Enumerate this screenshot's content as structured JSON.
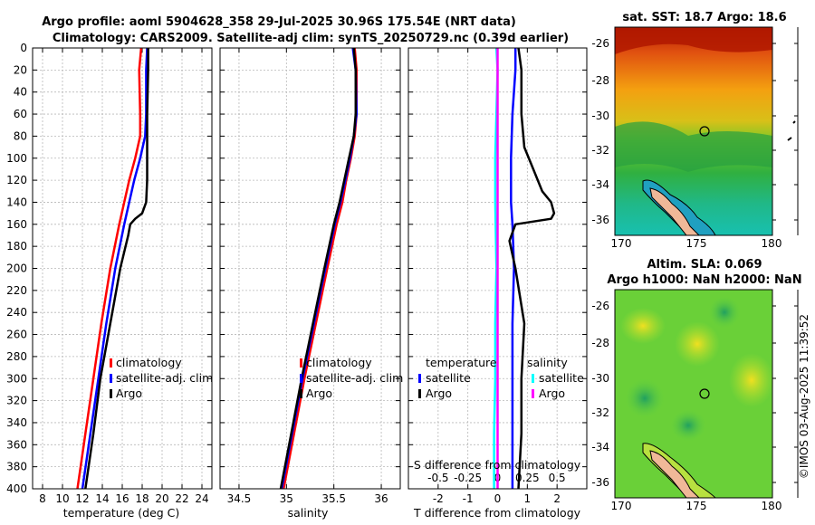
{
  "titles": {
    "line1": "Argo profile: aoml 5904628_358 29-Jul-2025 30.96S 175.54E (NRT data)",
    "line2": "Climatology: CARS2009. Satellite-adj clim: synTS_20250729.nc (0.39d earlier)"
  },
  "depth_ticks": [
    "0",
    "20",
    "40",
    "60",
    "80",
    "100",
    "120",
    "140",
    "160",
    "180",
    "200",
    "220",
    "240",
    "260",
    "280",
    "300",
    "320",
    "340",
    "360",
    "380",
    "400"
  ],
  "colors": {
    "climatology": "#ff0000",
    "satellite": "#0000ff",
    "argo": "#000000",
    "sal_satellite": "#00ffff",
    "sal_argo": "#ff00ff"
  },
  "chart_data": [
    {
      "type": "line",
      "panel": "temperature",
      "xlabel": "temperature (deg C)",
      "xlim": [
        7,
        25
      ],
      "ylim": [
        0,
        400
      ],
      "yreversed": true,
      "xticks": [
        "8",
        "10",
        "12",
        "14",
        "16",
        "18",
        "20",
        "22",
        "24"
      ],
      "legend": [
        "climatology",
        "satellite-adj. clim",
        "Argo"
      ],
      "series": [
        {
          "name": "climatology",
          "color": "#ff0000",
          "depth": [
            0,
            20,
            60,
            80,
            100,
            120,
            140,
            160,
            200,
            250,
            300,
            350,
            400
          ],
          "values": [
            17.9,
            17.7,
            17.8,
            17.8,
            17.3,
            16.7,
            16.2,
            15.7,
            14.8,
            13.9,
            13.1,
            12.3,
            11.5
          ]
        },
        {
          "name": "satellite-adj. clim",
          "color": "#0000ff",
          "depth": [
            0,
            20,
            60,
            80,
            100,
            120,
            140,
            160,
            200,
            250,
            300,
            350,
            400
          ],
          "values": [
            18.5,
            18.4,
            18.4,
            18.3,
            17.8,
            17.2,
            16.7,
            16.2,
            15.3,
            14.4,
            13.6,
            12.8,
            12.0
          ]
        },
        {
          "name": "Argo",
          "color": "#000000",
          "depth": [
            0,
            20,
            60,
            100,
            120,
            140,
            150,
            155,
            160,
            170,
            200,
            250,
            300,
            350,
            400
          ],
          "values": [
            18.6,
            18.6,
            18.5,
            18.5,
            18.5,
            18.4,
            18.0,
            17.3,
            16.8,
            16.6,
            15.8,
            14.8,
            13.8,
            13.1,
            12.3
          ]
        }
      ]
    },
    {
      "type": "line",
      "panel": "salinity",
      "xlabel": "salinity",
      "xlim": [
        34.3,
        36.2
      ],
      "ylim": [
        0,
        400
      ],
      "yreversed": true,
      "xticks": [
        "34.5",
        "35",
        "35.5",
        "36"
      ],
      "legend": [
        "climatology",
        "satellite-adj. clim",
        "Argo"
      ],
      "series": [
        {
          "name": "climatology",
          "color": "#ff0000",
          "depth": [
            0,
            20,
            60,
            80,
            100,
            120,
            140,
            160,
            200,
            250,
            300,
            350,
            400
          ],
          "values": [
            35.72,
            35.74,
            35.74,
            35.72,
            35.68,
            35.63,
            35.59,
            35.53,
            35.43,
            35.31,
            35.19,
            35.08,
            34.97
          ]
        },
        {
          "name": "satellite-adj. clim",
          "color": "#0000ff",
          "depth": [
            0,
            20,
            60,
            80,
            100,
            120,
            140,
            160,
            200,
            250,
            300,
            350,
            400
          ],
          "values": [
            35.7,
            35.73,
            35.74,
            35.71,
            35.67,
            35.62,
            35.57,
            35.51,
            35.41,
            35.29,
            35.17,
            35.06,
            34.95
          ]
        },
        {
          "name": "Argo",
          "color": "#000000",
          "depth": [
            0,
            20,
            60,
            80,
            100,
            120,
            140,
            160,
            200,
            250,
            300,
            350,
            400
          ],
          "values": [
            35.71,
            35.73,
            35.73,
            35.71,
            35.66,
            35.61,
            35.56,
            35.5,
            35.4,
            35.28,
            35.16,
            35.05,
            34.94
          ]
        }
      ]
    },
    {
      "type": "line",
      "panel": "difference",
      "xlabel": "T difference from climatology",
      "xlabel_top": "S difference from climatology",
      "xlim": [
        -3,
        3
      ],
      "ylim": [
        0,
        400
      ],
      "yreversed": true,
      "xticks": [
        "-2",
        "-1",
        "0",
        "1",
        "2"
      ],
      "xticks_salinity": [
        "-0.5",
        "-0.25",
        "0",
        "0.25",
        "0.5"
      ],
      "legend_temperature_title": "temperature",
      "legend_salinity_title": "salinity",
      "legend_temperature": [
        "satellite",
        "Argo"
      ],
      "legend_salinity": [
        "satellite",
        "Argo"
      ],
      "series": [
        {
          "name": "T satellite",
          "color": "#0000ff",
          "depth": [
            0,
            20,
            60,
            100,
            130,
            140,
            160,
            200,
            250,
            300,
            350,
            400
          ],
          "values": [
            0.6,
            0.6,
            0.5,
            0.45,
            0.45,
            0.45,
            0.5,
            0.55,
            0.5,
            0.5,
            0.5,
            0.5
          ]
        },
        {
          "name": "T Argo",
          "color": "#000000",
          "depth": [
            0,
            20,
            60,
            90,
            110,
            130,
            140,
            150,
            155,
            160,
            175,
            200,
            250,
            300,
            350,
            400
          ],
          "values": [
            0.7,
            0.8,
            0.8,
            0.9,
            1.2,
            1.5,
            1.8,
            1.9,
            1.8,
            0.6,
            0.4,
            0.6,
            0.9,
            0.8,
            0.8,
            0.7
          ]
        },
        {
          "name": "S satellite",
          "color": "#00ffff",
          "depth": [
            0,
            20,
            60,
            100,
            140,
            200,
            250,
            300,
            350,
            400
          ],
          "values": [
            -0.01,
            0.0,
            -0.01,
            -0.02,
            -0.02,
            -0.01,
            -0.02,
            -0.02,
            -0.03,
            -0.03
          ]
        },
        {
          "name": "S Argo",
          "color": "#ff00ff",
          "depth": [
            0,
            400
          ],
          "values": [
            0.0,
            0.0
          ]
        }
      ]
    }
  ],
  "maps": {
    "sst": {
      "title": "sat. SST: 18.7 Argo: 18.6"
    },
    "sla": {
      "title1": "Altim. SLA: 0.069",
      "title2": "Argo h1000: NaN h2000: NaN"
    },
    "lat_ticks": [
      "-26",
      "-28",
      "-30",
      "-32",
      "-34",
      "-36"
    ],
    "lon_ticks": [
      "170",
      "175",
      "180"
    ]
  },
  "stamp": "©IMOS 03-Aug-2025 11:39:52"
}
